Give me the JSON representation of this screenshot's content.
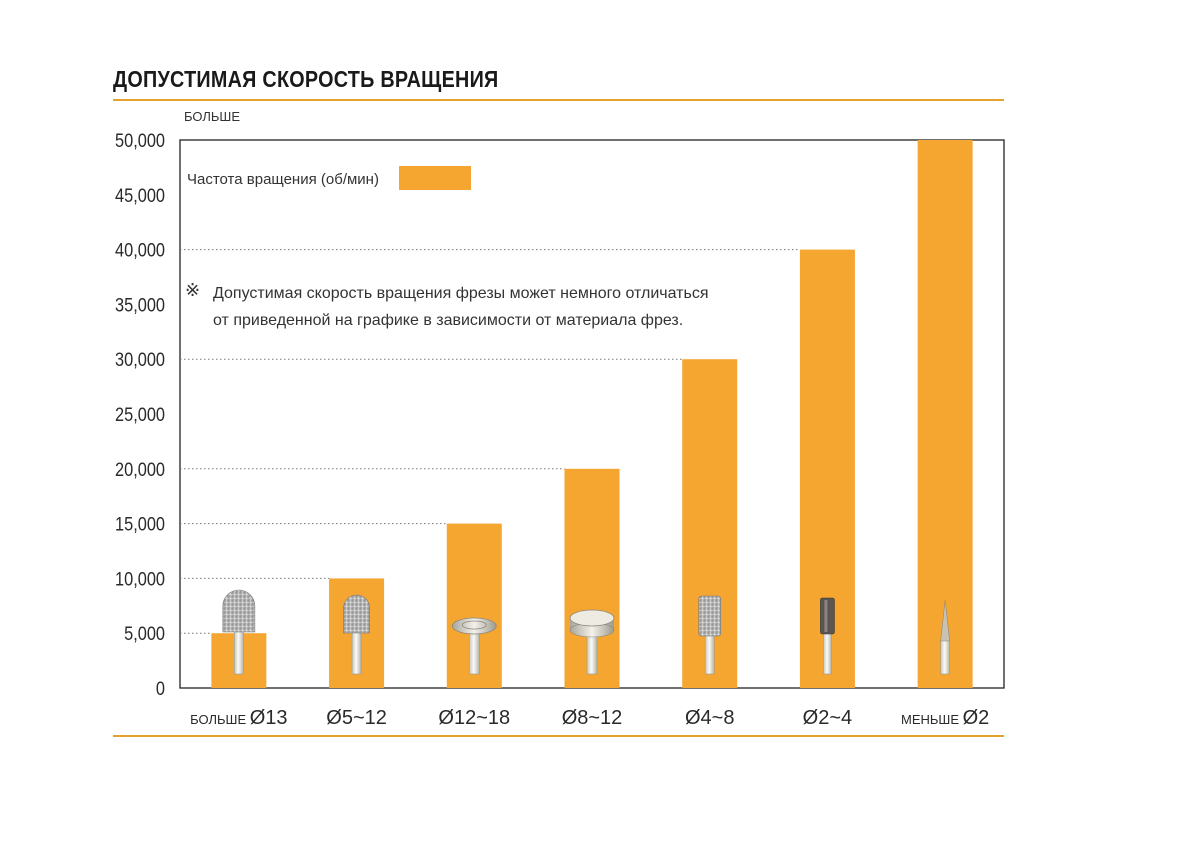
{
  "title": "ДОПУСТИМАЯ СКОРОСТЬ ВРАЩЕНИЯ",
  "colors": {
    "bar": "#f5a631",
    "accent_rule": "#e3a22e",
    "axis": "#222222",
    "grid": "#777777"
  },
  "chart_data": {
    "type": "bar",
    "title": "ДОПУСТИМАЯ СКОРОСТЬ ВРАЩЕНИЯ",
    "y_top_label": "БОЛЬШЕ",
    "ylim": [
      0,
      50000
    ],
    "yticks": [
      0,
      5000,
      10000,
      15000,
      20000,
      25000,
      30000,
      35000,
      40000,
      45000,
      50000
    ],
    "ytick_labels": [
      "0",
      "5,000",
      "10,000",
      "15,000",
      "20,000",
      "25,000",
      "30,000",
      "35,000",
      "40,000",
      "45,000",
      "50,000"
    ],
    "categories": [
      {
        "prefix": "БОЛЬШЕ ",
        "label": "Ø13"
      },
      {
        "prefix": "",
        "label": "Ø5~12"
      },
      {
        "prefix": "",
        "label": "Ø12~18"
      },
      {
        "prefix": "",
        "label": "Ø8~12"
      },
      {
        "prefix": "",
        "label": "Ø4~8"
      },
      {
        "prefix": "",
        "label": "Ø2~4"
      },
      {
        "prefix": "МЕНЬШЕ ",
        "label": "Ø2"
      }
    ],
    "series": [
      {
        "name": "Частота вращения (об/мин)",
        "values": [
          5000,
          10000,
          15000,
          20000,
          30000,
          40000,
          50000
        ]
      }
    ],
    "tools": [
      "round-diamond-burr",
      "round-diamond-burr",
      "thin-cutting-disc",
      "thick-cutting-disc",
      "cylinder-diamond-burr",
      "dark-cylinder-burr",
      "pointed-burr"
    ],
    "legend_position": "top-left",
    "grid": "dotted-at-bar-tops",
    "note_symbol": "※",
    "note_lines": [
      "Допустимая скорость вращения фрезы может немного отличаться",
      "от приведенной на графике в зависимости от материала фрез."
    ]
  }
}
